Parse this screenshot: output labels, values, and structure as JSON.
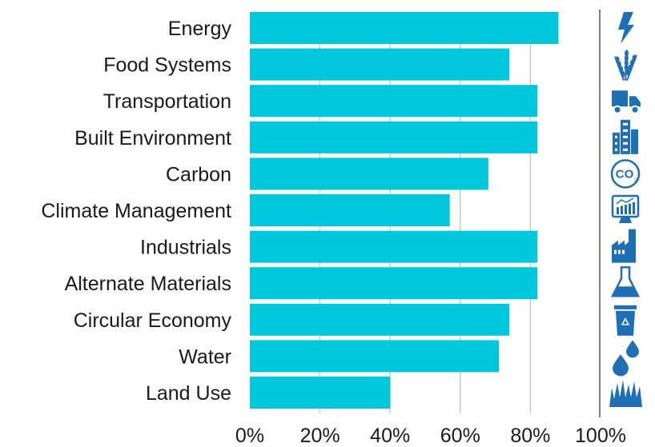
{
  "chart_data": {
    "type": "bar",
    "orientation": "horizontal",
    "categories": [
      "Energy",
      "Food Systems",
      "Transportation",
      "Built Environment",
      "Carbon",
      "Climate Management",
      "Industrials",
      "Alternate Materials",
      "Circular Economy",
      "Water",
      "Land Use"
    ],
    "values": [
      88,
      74,
      82,
      82,
      68,
      57,
      82,
      82,
      74,
      71,
      40
    ],
    "xlim": [
      0,
      100
    ],
    "xticks": [
      "0%",
      "20%",
      "40%",
      "60%",
      "80%",
      "100%"
    ],
    "grid": "vertical",
    "bar_color": "#00c8dc",
    "icon_color": "#1f6fb5",
    "icons": [
      "lightning-icon",
      "wheat-icon",
      "truck-icon",
      "buildings-icon",
      "co2-icon",
      "monitor-chart-icon",
      "factory-icon",
      "flask-icon",
      "recycle-bin-icon",
      "water-drops-icon",
      "grass-icon"
    ]
  }
}
